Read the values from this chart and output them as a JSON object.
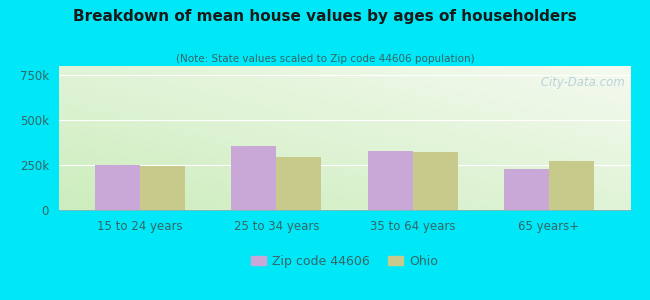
{
  "title": "Breakdown of mean house values by ages of householders",
  "subtitle": "(Note: State values scaled to Zip code 44606 population)",
  "categories": [
    "15 to 24 years",
    "25 to 34 years",
    "35 to 64 years",
    "65 years+"
  ],
  "zip_values": [
    250000,
    355000,
    330000,
    230000
  ],
  "ohio_values": [
    245000,
    295000,
    325000,
    275000
  ],
  "zip_color": "#c9a8d8",
  "ohio_color": "#c8ca8c",
  "ylim": [
    0,
    800000
  ],
  "yticks": [
    0,
    250000,
    500000,
    750000
  ],
  "ytick_labels": [
    "0",
    "250k",
    "500k",
    "750k"
  ],
  "background_outer": "#00e8f8",
  "bar_width": 0.33,
  "legend_zip_label": "Zip code 44606",
  "legend_ohio_label": "Ohio",
  "watermark": " City-Data.com"
}
